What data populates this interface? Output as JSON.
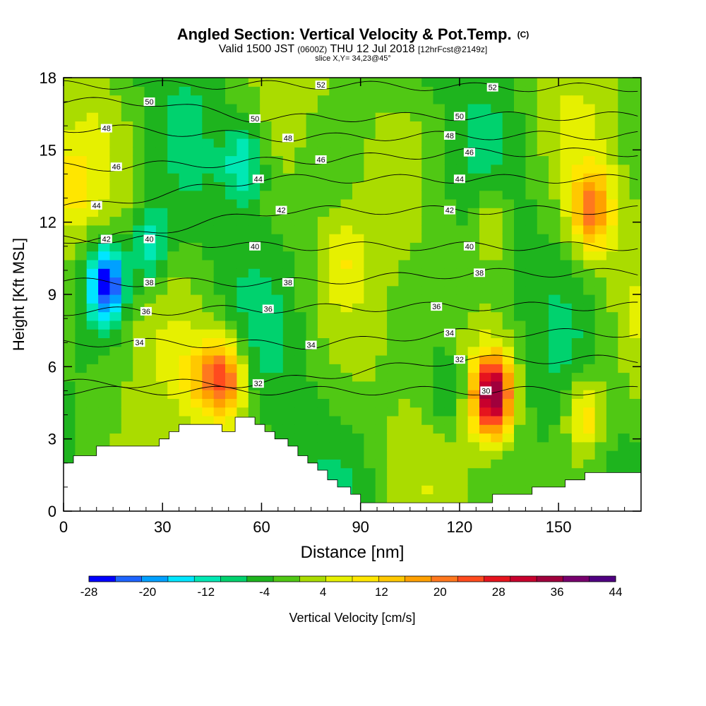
{
  "title": {
    "main": "Angled Section: Vertical Velocity & Pot.Temp.",
    "main_mark": "(C)",
    "valid": "Valid 1500 JST",
    "utc": "(0600Z)",
    "date": "THU 12 Jul 2018",
    "forecast": "[12hrFcst@2149z]",
    "slice": "slice X,Y= 34,23@45°"
  },
  "chart_data": {
    "type": "heatmap",
    "xlabel": "Distance [nm]",
    "ylabel": "Height [Kft MSL]",
    "xlim": [
      0,
      175
    ],
    "ylim": [
      0,
      18
    ],
    "x_ticks": [
      0,
      30,
      60,
      90,
      120,
      150
    ],
    "y_ticks": [
      0,
      3,
      6,
      9,
      12,
      15,
      18
    ],
    "colorbar": {
      "label": "Vertical Velocity [cm/s]",
      "min": -28,
      "max": 44,
      "step": 4,
      "tick_labels": [
        -28,
        -20,
        -12,
        -4,
        4,
        12,
        20,
        28,
        36,
        44
      ],
      "colors": [
        "#0000ff",
        "#1e64ff",
        "#00a0ff",
        "#00e6ff",
        "#00e8b4",
        "#00d26e",
        "#1eb41e",
        "#50c814",
        "#aadc00",
        "#e6f000",
        "#ffe600",
        "#ffc800",
        "#ffa000",
        "#ff781e",
        "#ff4b1e",
        "#e6141e",
        "#c8002d",
        "#a0003c",
        "#78006e",
        "#500082"
      ]
    },
    "velocity_features": [
      {
        "x": 13,
        "y": 9.5,
        "value": -28
      },
      {
        "x": 2,
        "y": 13.5,
        "value": 10
      },
      {
        "x": 49,
        "y": 5.5,
        "value": 28
      },
      {
        "x": 42,
        "y": 5.6,
        "value": 12
      },
      {
        "x": 130,
        "y": 4.8,
        "value": 44
      },
      {
        "x": 160,
        "y": 12.5,
        "value": 24
      },
      {
        "x": 158,
        "y": 4.0,
        "value": 18
      },
      {
        "x": 26,
        "y": 11.0,
        "value": -12
      },
      {
        "x": 55,
        "y": 14.5,
        "value": -12
      },
      {
        "x": 116,
        "y": 5.0,
        "value": -8
      },
      {
        "x": 130,
        "y": 12.0,
        "value": 12
      },
      {
        "x": 85,
        "y": 10.5,
        "value": 8
      }
    ],
    "isentropes": [
      {
        "value": 30,
        "label_x": 128,
        "label_y": 5.0
      },
      {
        "value": 32,
        "label_x": 59,
        "label_y": 5.3
      },
      {
        "value": 32,
        "label_x": 120,
        "label_y": 6.3
      },
      {
        "value": 34,
        "label_x": 23,
        "label_y": 7.0
      },
      {
        "value": 34,
        "label_x": 75,
        "label_y": 6.9
      },
      {
        "value": 34,
        "label_x": 117,
        "label_y": 7.4
      },
      {
        "value": 36,
        "label_x": 25,
        "label_y": 8.3
      },
      {
        "value": 36,
        "label_x": 62,
        "label_y": 8.4
      },
      {
        "value": 36,
        "label_x": 113,
        "label_y": 8.5
      },
      {
        "value": 38,
        "label_x": 26,
        "label_y": 9.5
      },
      {
        "value": 38,
        "label_x": 68,
        "label_y": 9.5
      },
      {
        "value": 38,
        "label_x": 126,
        "label_y": 9.9
      },
      {
        "value": 40,
        "label_x": 26,
        "label_y": 11.3
      },
      {
        "value": 40,
        "label_x": 58,
        "label_y": 11.0
      },
      {
        "value": 40,
        "label_x": 123,
        "label_y": 11.0
      },
      {
        "value": 42,
        "label_x": 13,
        "label_y": 11.3
      },
      {
        "value": 42,
        "label_x": 66,
        "label_y": 12.5
      },
      {
        "value": 42,
        "label_x": 117,
        "label_y": 12.5
      },
      {
        "value": 44,
        "label_x": 10,
        "label_y": 12.7
      },
      {
        "value": 44,
        "label_x": 59,
        "label_y": 13.8
      },
      {
        "value": 44,
        "label_x": 120,
        "label_y": 13.8
      },
      {
        "value": 46,
        "label_x": 16,
        "label_y": 14.3
      },
      {
        "value": 46,
        "label_x": 78,
        "label_y": 14.6
      },
      {
        "value": 46,
        "label_x": 123,
        "label_y": 14.9
      },
      {
        "value": 48,
        "label_x": 13,
        "label_y": 15.9
      },
      {
        "value": 48,
        "label_x": 68,
        "label_y": 15.5
      },
      {
        "value": 48,
        "label_x": 117,
        "label_y": 15.6
      },
      {
        "value": 50,
        "label_x": 26,
        "label_y": 17.0
      },
      {
        "value": 50,
        "label_x": 58,
        "label_y": 16.3
      },
      {
        "value": 50,
        "label_x": 120,
        "label_y": 16.4
      },
      {
        "value": 52,
        "label_x": 78,
        "label_y": 17.7
      },
      {
        "value": 52,
        "label_x": 130,
        "label_y": 17.6
      }
    ],
    "terrain": [
      [
        0,
        2.0
      ],
      [
        3,
        2.0
      ],
      [
        3,
        2.3
      ],
      [
        10,
        2.3
      ],
      [
        10,
        2.7
      ],
      [
        29,
        2.7
      ],
      [
        29,
        3.0
      ],
      [
        32,
        3.0
      ],
      [
        32,
        3.3
      ],
      [
        35,
        3.3
      ],
      [
        35,
        3.6
      ],
      [
        48,
        3.6
      ],
      [
        48,
        3.3
      ],
      [
        52,
        3.3
      ],
      [
        52,
        3.9
      ],
      [
        58,
        3.9
      ],
      [
        58,
        3.6
      ],
      [
        61,
        3.6
      ],
      [
        61,
        3.3
      ],
      [
        64,
        3.3
      ],
      [
        64,
        3.0
      ],
      [
        68,
        3.0
      ],
      [
        68,
        2.7
      ],
      [
        71,
        2.7
      ],
      [
        71,
        2.3
      ],
      [
        74,
        2.3
      ],
      [
        74,
        2.0
      ],
      [
        77,
        2.0
      ],
      [
        77,
        1.7
      ],
      [
        80,
        1.7
      ],
      [
        80,
        1.3
      ],
      [
        83,
        1.3
      ],
      [
        83,
        1.0
      ],
      [
        87,
        1.0
      ],
      [
        87,
        0.7
      ],
      [
        90,
        0.7
      ],
      [
        90,
        0.35
      ],
      [
        130,
        0.35
      ],
      [
        130,
        0.7
      ],
      [
        142,
        0.7
      ],
      [
        142,
        1.0
      ],
      [
        152,
        1.0
      ],
      [
        152,
        1.3
      ],
      [
        158,
        1.3
      ],
      [
        158,
        1.6
      ],
      [
        175,
        1.6
      ]
    ]
  }
}
